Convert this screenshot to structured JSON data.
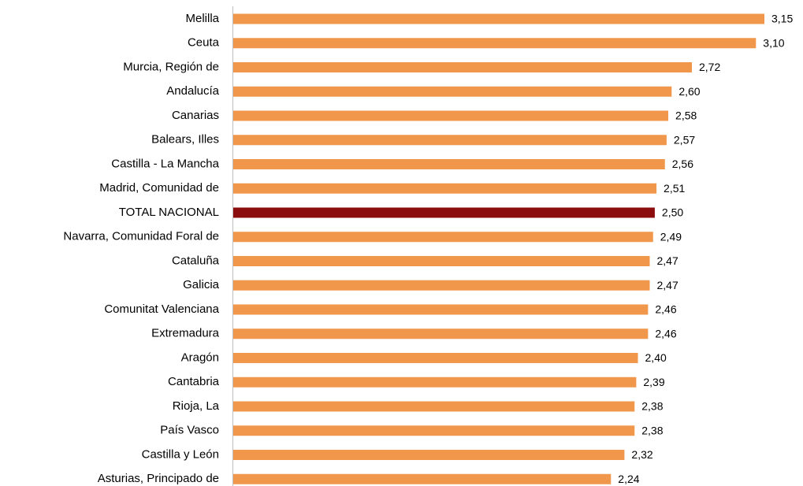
{
  "chart_data": {
    "type": "bar",
    "orientation": "horizontal",
    "categories": [
      "Melilla",
      "Ceuta",
      "Murcia, Región de",
      "Andalucía",
      "Canarias",
      "Balears, Illes",
      "Castilla - La Mancha",
      "Madrid, Comunidad de",
      "TOTAL NACIONAL",
      "Navarra, Comunidad Foral de",
      "Cataluña",
      "Galicia",
      "Comunitat Valenciana",
      "Extremadura",
      "Aragón",
      "Cantabria",
      "Rioja, La",
      "País Vasco",
      "Castilla y León",
      "Asturias, Principado de"
    ],
    "values": [
      3.15,
      3.1,
      2.72,
      2.6,
      2.58,
      2.57,
      2.56,
      2.51,
      2.5,
      2.49,
      2.47,
      2.47,
      2.46,
      2.46,
      2.4,
      2.39,
      2.38,
      2.38,
      2.32,
      2.24
    ],
    "value_labels": [
      "3,15",
      "3,10",
      "2,72",
      "2,60",
      "2,58",
      "2,57",
      "2,56",
      "2,51",
      "2,50",
      "2,49",
      "2,47",
      "2,47",
      "2,46",
      "2,46",
      "2,40",
      "2,39",
      "2,38",
      "2,38",
      "2,32",
      "2,24"
    ],
    "colors": [
      "#f0974b",
      "#f0974b",
      "#f0974b",
      "#f0974b",
      "#f0974b",
      "#f0974b",
      "#f0974b",
      "#f0974b",
      "#8b0d0d",
      "#f0974b",
      "#f0974b",
      "#f0974b",
      "#f0974b",
      "#f0974b",
      "#f0974b",
      "#f0974b",
      "#f0974b",
      "#f0974b",
      "#f0974b",
      "#f0974b"
    ]
  }
}
